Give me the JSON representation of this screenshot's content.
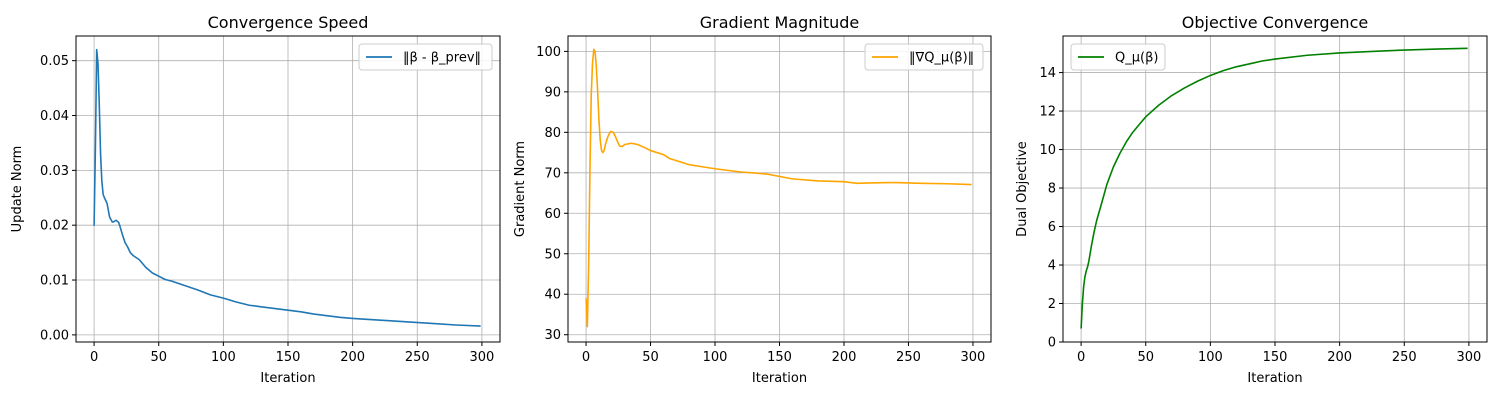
{
  "chart_data": [
    {
      "type": "line",
      "title": "Convergence Speed",
      "xlabel": "Iteration",
      "ylabel": "Update Norm",
      "xlim": [
        -14,
        314
      ],
      "ylim": [
        -0.0013,
        0.0545
      ],
      "xticks": [
        0,
        50,
        100,
        150,
        200,
        250,
        300
      ],
      "yticks": [
        0.0,
        0.01,
        0.02,
        0.03,
        0.04,
        0.05
      ],
      "ytick_labels": [
        "0.00",
        "0.01",
        "0.02",
        "0.03",
        "0.04",
        "0.05"
      ],
      "grid": true,
      "legend": "top-right",
      "series": [
        {
          "name": "‖β - β_prev‖",
          "color": "#1f77b4",
          "x": [
            0,
            1,
            2,
            3,
            4,
            5,
            6,
            7,
            8,
            10,
            12,
            14,
            15,
            17,
            19,
            20,
            22,
            24,
            26,
            28,
            30,
            35,
            40,
            45,
            50,
            55,
            60,
            70,
            80,
            90,
            100,
            110,
            120,
            130,
            140,
            150,
            160,
            170,
            180,
            190,
            200,
            220,
            240,
            260,
            280,
            299
          ],
          "values": [
            0.0199,
            0.034,
            0.052,
            0.0495,
            0.042,
            0.033,
            0.028,
            0.0256,
            0.025,
            0.024,
            0.0215,
            0.0206,
            0.0206,
            0.0209,
            0.0205,
            0.0198,
            0.0182,
            0.0168,
            0.016,
            0.015,
            0.0145,
            0.0137,
            0.0123,
            0.0113,
            0.0107,
            0.0101,
            0.0098,
            0.009,
            0.0082,
            0.0073,
            0.0067,
            0.006,
            0.0054,
            0.0051,
            0.0048,
            0.0045,
            0.0042,
            0.0038,
            0.0035,
            0.0032,
            0.003,
            0.0027,
            0.0024,
            0.0021,
            0.0018,
            0.0016
          ]
        }
      ]
    },
    {
      "type": "line",
      "title": "Gradient Magnitude",
      "xlabel": "Iteration",
      "ylabel": "Gradient Norm",
      "xlim": [
        -14,
        314
      ],
      "ylim": [
        28.2,
        103.8
      ],
      "xticks": [
        0,
        50,
        100,
        150,
        200,
        250,
        300
      ],
      "yticks": [
        30,
        40,
        50,
        60,
        70,
        80,
        90,
        100
      ],
      "ytick_labels": [
        "30",
        "40",
        "50",
        "60",
        "70",
        "80",
        "90",
        "100"
      ],
      "grid": true,
      "legend": "top-right",
      "series": [
        {
          "name": "‖∇Q_μ(β)‖",
          "color": "#ffa500",
          "x": [
            0,
            1,
            2,
            3,
            4,
            5,
            6,
            7,
            8,
            9,
            10,
            11,
            12,
            13,
            14,
            15,
            17,
            19,
            21,
            22,
            24,
            26,
            28,
            30,
            35,
            40,
            45,
            50,
            55,
            60,
            65,
            70,
            80,
            90,
            100,
            120,
            140,
            160,
            180,
            200,
            210,
            220,
            240,
            260,
            280,
            299
          ],
          "values": [
            39.0,
            32.0,
            47.0,
            70.0,
            89.0,
            97.0,
            100.5,
            100.0,
            96.0,
            90.0,
            83.0,
            78.0,
            75.5,
            75.0,
            75.5,
            77.0,
            79.0,
            80.2,
            80.0,
            79.5,
            78.0,
            76.6,
            76.5,
            77.0,
            77.3,
            77.0,
            76.3,
            75.5,
            75.0,
            74.5,
            73.5,
            73.0,
            72.0,
            71.5,
            71.0,
            70.2,
            69.7,
            68.5,
            68.0,
            67.8,
            67.4,
            67.5,
            67.6,
            67.4,
            67.3,
            67.1
          ]
        }
      ]
    },
    {
      "type": "line",
      "title": "Objective Convergence",
      "xlabel": "Iteration",
      "ylabel": "Dual Objective",
      "xlim": [
        -14,
        314
      ],
      "ylim": [
        0,
        15.9
      ],
      "xticks": [
        0,
        50,
        100,
        150,
        200,
        250,
        300
      ],
      "yticks": [
        0,
        2,
        4,
        6,
        8,
        10,
        12,
        14
      ],
      "ytick_labels": [
        "0",
        "2",
        "4",
        "6",
        "8",
        "10",
        "12",
        "14"
      ],
      "grid": true,
      "legend": "top-left",
      "series": [
        {
          "name": "Q_μ(β)",
          "color": "#008000",
          "x": [
            0,
            1,
            2,
            3,
            4,
            5,
            6,
            7,
            8,
            10,
            12,
            15,
            20,
            25,
            30,
            35,
            40,
            45,
            50,
            60,
            70,
            80,
            90,
            100,
            110,
            120,
            130,
            140,
            150,
            175,
            200,
            225,
            250,
            275,
            299
          ],
          "values": [
            0.7,
            2.0,
            2.9,
            3.4,
            3.7,
            3.9,
            4.2,
            4.6,
            5.0,
            5.7,
            6.3,
            7.0,
            8.2,
            9.1,
            9.8,
            10.4,
            10.9,
            11.3,
            11.7,
            12.3,
            12.8,
            13.2,
            13.55,
            13.85,
            14.1,
            14.3,
            14.45,
            14.6,
            14.7,
            14.9,
            15.02,
            15.1,
            15.17,
            15.22,
            15.26
          ]
        }
      ]
    }
  ]
}
